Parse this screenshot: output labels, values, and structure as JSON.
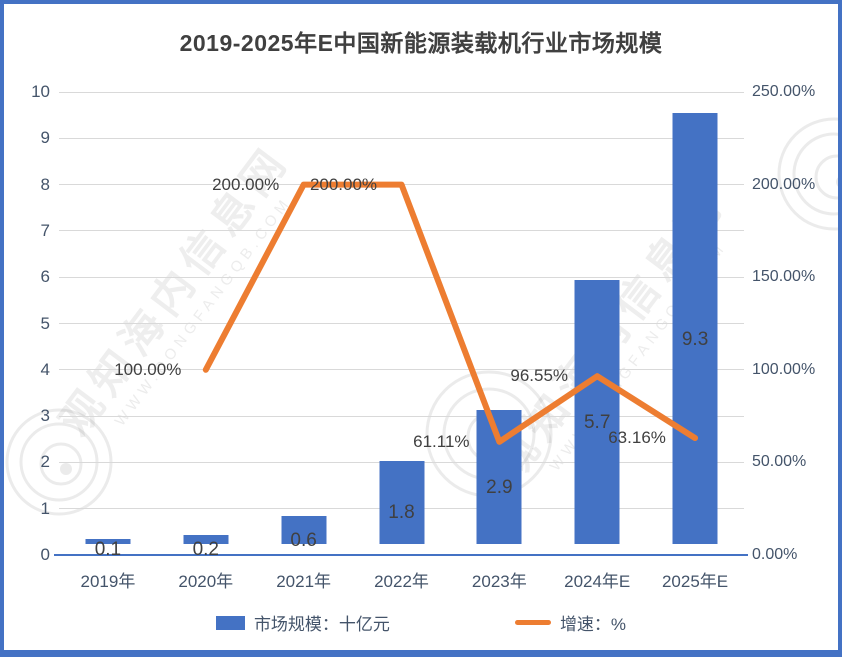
{
  "title": "2019-2025年E中国新能源装载机行业市场规模",
  "chart_data": {
    "type": "bar+line-combo",
    "categories": [
      "2019年",
      "2020年",
      "2021年",
      "2022年",
      "2023年",
      "2024年E",
      "2025年E"
    ],
    "series": [
      {
        "name": "市场规模：十亿元",
        "type": "bar",
        "axis": "left",
        "color": "#4472C4",
        "values": [
          0.1,
          0.2,
          0.6,
          1.8,
          2.9,
          5.7,
          9.3
        ],
        "labels": [
          "0.1",
          "0.2",
          "0.6",
          "1.8",
          "2.9",
          "5.7",
          "9.3"
        ]
      },
      {
        "name": "增速：%",
        "type": "line",
        "axis": "right",
        "color": "#ED7D31",
        "values": [
          null,
          100,
          200,
          200,
          61.11,
          96.55,
          63.16
        ],
        "labels": [
          null,
          "100.00%",
          "200.00%",
          "200.00%",
          "61.11%",
          "96.55%",
          "63.16%"
        ]
      }
    ],
    "left_axis": {
      "min": 0,
      "max": 10,
      "step": 1,
      "ticks": [
        "0",
        "1",
        "2",
        "3",
        "4",
        "5",
        "6",
        "7",
        "8",
        "9",
        "10"
      ]
    },
    "right_axis": {
      "min": 0,
      "max": 250,
      "step": 50,
      "ticks": [
        "0.00%",
        "50.00%",
        "100.00%",
        "150.00%",
        "200.00%",
        "250.00%"
      ]
    },
    "grid": true,
    "legend_position": "bottom"
  },
  "legend": {
    "items": [
      {
        "label": "市场规模：十亿元",
        "color": "#4472C4",
        "marker": "bar"
      },
      {
        "label": "增速：%",
        "color": "#ED7D31",
        "marker": "line"
      }
    ]
  },
  "watermark": {
    "text_cn": "观知海内信息网",
    "text_url": "WWW.DONGFANGQB.COM"
  },
  "colors": {
    "bar": "#4472C4",
    "line": "#ED7D31",
    "frame": "#4472C4",
    "axis_text": "#44546A",
    "data_label": "#404040",
    "gridline": "#D9D9D9",
    "title": "#404040"
  }
}
